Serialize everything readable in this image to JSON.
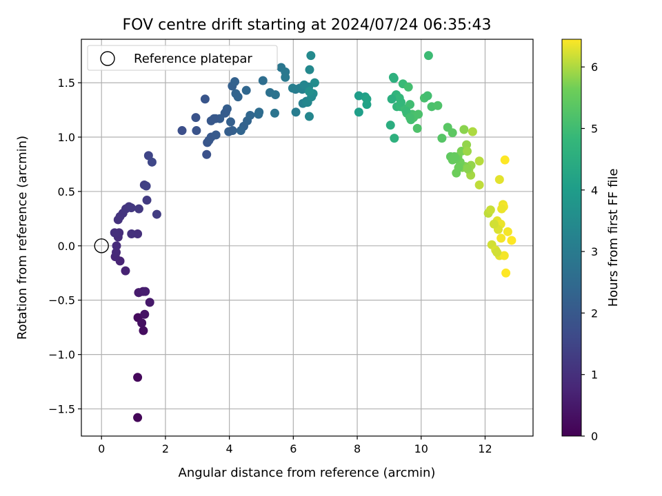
{
  "chart_data": {
    "type": "scatter",
    "title": "FOV centre drift starting at 2024/07/24 06:35:43",
    "xlabel": "Angular distance from reference (arcmin)",
    "ylabel": "Rotation from reference (arcmin)",
    "xlim": [
      -0.63,
      13.5
    ],
    "ylim": [
      -1.75,
      1.9
    ],
    "xticks": [
      0,
      2,
      4,
      6,
      8,
      10,
      12
    ],
    "yticks": [
      -1.5,
      -1.0,
      -0.5,
      0.0,
      0.5,
      1.0,
      1.5
    ],
    "xtick_labels": [
      "0",
      "2",
      "4",
      "6",
      "8",
      "10",
      "12"
    ],
    "ytick_labels": [
      "−1.5",
      "−1.0",
      "−0.5",
      "0.0",
      "0.5",
      "1.0",
      "1.5"
    ],
    "grid": true,
    "legend": {
      "position": "top-left",
      "entries": [
        "Reference platepar"
      ]
    },
    "reference_point": {
      "x": 0,
      "y": 0,
      "label": "Reference platepar"
    },
    "colorbar": {
      "label": "Hours from first FF file",
      "colormap": "viridis",
      "range": [
        0,
        6.45
      ],
      "ticks": [
        0,
        1,
        2,
        3,
        4,
        5,
        6
      ]
    },
    "series": [
      {
        "x": [
          1.13,
          1.13,
          1.14,
          1.31,
          1.26,
          1.35,
          1.16,
          1.3,
          1.51,
          1.17,
          1.37,
          0.75,
          0.58,
          0.43,
          0.46,
          0.47,
          0.52,
          0.55,
          0.41,
          1.13,
          0.94,
          0.52,
          0.58,
          0.67,
          0.76,
          0.86,
          0.93,
          1.17,
          1.42,
          1.73,
          1.34,
          1.4,
          1.47,
          1.58
        ],
        "y": [
          -1.58,
          -1.21,
          -0.66,
          -0.78,
          -0.71,
          -0.63,
          -0.43,
          -0.42,
          -0.52,
          -0.43,
          -0.42,
          -0.23,
          -0.14,
          -0.1,
          -0.06,
          0.0,
          0.08,
          0.12,
          0.12,
          0.11,
          0.11,
          0.24,
          0.27,
          0.3,
          0.34,
          0.36,
          0.35,
          0.34,
          0.42,
          0.29,
          0.56,
          0.55,
          0.83,
          0.77
        ],
        "hours": [
          0.1,
          0.15,
          0.2,
          0.25,
          0.3,
          0.35,
          0.4,
          0.45,
          0.5,
          0.55,
          0.6,
          0.7,
          0.75,
          0.8,
          0.85,
          0.9,
          0.92,
          0.95,
          0.98,
          1.0,
          1.02,
          1.05,
          1.08,
          1.1,
          1.12,
          1.15,
          1.18,
          1.2,
          1.25,
          1.3,
          1.35,
          1.4,
          1.5,
          1.55
        ]
      },
      {
        "x": [
          2.52,
          2.97,
          3.31,
          3.36,
          3.43,
          3.58,
          3.7,
          3.93,
          4.1,
          4.45,
          4.56,
          4.36,
          4.65,
          3.29,
          3.43,
          3.57,
          3.86,
          3.98,
          4.04,
          4.2,
          2.95,
          3.24,
          3.52,
          3.89,
          4.09,
          4.17,
          4.27,
          4.53
        ],
        "y": [
          1.06,
          1.06,
          0.95,
          0.97,
          1.0,
          1.02,
          1.17,
          1.26,
          1.06,
          1.1,
          1.15,
          1.06,
          1.2,
          0.84,
          1.15,
          1.17,
          1.22,
          1.05,
          1.14,
          1.4,
          1.18,
          1.35,
          1.17,
          1.23,
          1.47,
          1.51,
          1.37,
          1.43
        ],
        "hours": [
          1.75,
          1.85,
          1.9,
          1.95,
          2.0,
          2.05,
          2.1,
          2.15,
          2.2,
          2.25,
          2.3,
          2.35,
          2.4,
          1.8,
          2.0,
          2.05,
          2.1,
          2.15,
          2.2,
          2.3,
          1.85,
          1.9,
          2.0,
          2.1,
          2.2,
          2.25,
          2.3,
          2.4
        ]
      },
      {
        "x": [
          4.91,
          4.93,
          5.05,
          5.27,
          5.44,
          5.42,
          5.62,
          5.75,
          5.75,
          6.07,
          6.08,
          6.2,
          6.3,
          6.37,
          6.41,
          6.42,
          6.5,
          6.51,
          6.55,
          6.62,
          6.67,
          6.48,
          6.28,
          6.34,
          6.45,
          6.57,
          6.5,
          5.98
        ],
        "y": [
          1.21,
          1.23,
          1.52,
          1.41,
          1.39,
          1.22,
          1.64,
          1.6,
          1.55,
          1.44,
          1.23,
          1.45,
          1.31,
          1.47,
          1.33,
          1.32,
          1.19,
          1.62,
          1.75,
          1.4,
          1.5,
          1.46,
          1.44,
          1.48,
          1.32,
          1.37,
          1.42,
          1.45
        ],
        "hours": [
          2.5,
          2.55,
          2.6,
          2.7,
          2.75,
          2.8,
          2.85,
          2.9,
          2.95,
          3.0,
          3.05,
          3.1,
          3.15,
          3.2,
          3.25,
          3.3,
          3.35,
          3.4,
          3.45,
          3.5,
          3.55,
          3.4,
          3.2,
          3.3,
          3.35,
          3.45,
          3.6,
          3.1
        ]
      },
      {
        "x": [
          8.05,
          8.05,
          8.25,
          8.3,
          8.3,
          9.04,
          9.15,
          9.16,
          9.2,
          9.22,
          9.24,
          9.32,
          9.35,
          9.43,
          9.5,
          9.55,
          9.6,
          9.65,
          9.68,
          9.72,
          9.76,
          9.88,
          9.91,
          10.1,
          10.2,
          10.23,
          10.33,
          10.52,
          9.37,
          9.53,
          9.08,
          9.13,
          9.65
        ],
        "y": [
          1.38,
          1.23,
          1.37,
          1.3,
          1.35,
          1.11,
          1.54,
          0.99,
          1.38,
          1.39,
          1.28,
          1.36,
          1.28,
          1.49,
          1.26,
          1.22,
          1.46,
          1.3,
          1.16,
          1.21,
          1.18,
          1.08,
          1.21,
          1.36,
          1.38,
          1.75,
          1.28,
          1.29,
          1.32,
          1.24,
          1.35,
          1.55,
          1.18
        ],
        "hours": [
          4.0,
          4.05,
          4.1,
          4.15,
          4.2,
          4.5,
          4.55,
          4.6,
          4.65,
          4.7,
          4.75,
          4.8,
          4.85,
          4.9,
          4.95,
          5.0,
          5.05,
          5.0,
          5.05,
          5.1,
          5.15,
          5.2,
          5.15,
          5.1,
          5.05,
          4.95,
          5.15,
          5.2,
          4.8,
          4.9,
          4.55,
          4.6,
          5.05
        ]
      },
      {
        "x": [
          10.65,
          10.83,
          10.98,
          10.92,
          10.98,
          11.06,
          11.1,
          11.15,
          11.26,
          11.29,
          11.34,
          11.42,
          11.44,
          11.55,
          11.61,
          11.82,
          11.82,
          11.56,
          11.37,
          11.22,
          11.17,
          11.09,
          11.04,
          11.49,
          11.45
        ],
        "y": [
          0.99,
          1.09,
          1.04,
          0.82,
          0.79,
          0.8,
          0.67,
          0.82,
          0.87,
          0.72,
          1.07,
          0.93,
          0.87,
          0.65,
          1.05,
          0.78,
          0.56,
          0.74,
          0.73,
          0.77,
          0.72,
          0.8,
          0.82,
          0.7,
          0.71
        ],
        "hours": [
          5.3,
          5.35,
          5.4,
          5.45,
          5.5,
          5.55,
          5.6,
          5.65,
          5.7,
          5.75,
          5.8,
          5.85,
          5.9,
          5.95,
          6.0,
          6.05,
          6.1,
          5.85,
          5.75,
          5.65,
          5.6,
          5.55,
          5.5,
          5.9,
          5.8
        ]
      },
      {
        "x": [
          12.1,
          12.17,
          12.21,
          12.33,
          12.38,
          12.45,
          12.49,
          12.56,
          12.58,
          12.6,
          12.62,
          12.65,
          12.71,
          12.83,
          12.45,
          12.37,
          12.41,
          12.28,
          12.52,
          12.5
        ],
        "y": [
          0.3,
          0.33,
          0.01,
          -0.04,
          0.23,
          -0.09,
          0.2,
          0.38,
          0.36,
          -0.09,
          0.79,
          -0.25,
          0.13,
          0.05,
          0.61,
          -0.06,
          0.15,
          0.2,
          0.34,
          0.07
        ],
        "hours": [
          6.1,
          6.15,
          6.2,
          6.25,
          6.3,
          6.3,
          6.35,
          6.35,
          6.4,
          6.4,
          6.45,
          6.45,
          6.4,
          6.45,
          6.3,
          6.2,
          6.25,
          6.2,
          6.35,
          6.4
        ]
      }
    ]
  }
}
